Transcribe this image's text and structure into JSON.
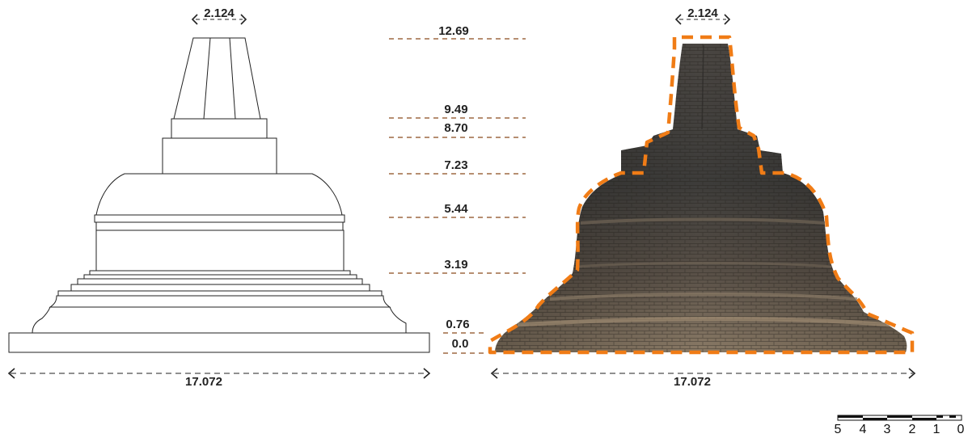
{
  "drawing": {
    "top_width_label": "2.124",
    "base_width_label": "17.072"
  },
  "photo": {
    "top_width_label": "2.124",
    "base_width_label": "17.072"
  },
  "levels": [
    "12.69",
    "9.49",
    "8.70",
    "7.23",
    "5.44",
    "3.19",
    "0.76",
    "0.0"
  ],
  "scale_bar": {
    "labels": [
      "5",
      "4",
      "3",
      "2",
      "1",
      "0"
    ]
  },
  "colors": {
    "outline_orange": "#f07c16",
    "level_line": "#8a4a1c",
    "stone_dark": "#3d3c3a",
    "stone_mid": "#5a5148",
    "stone_light": "#8a7a66"
  }
}
